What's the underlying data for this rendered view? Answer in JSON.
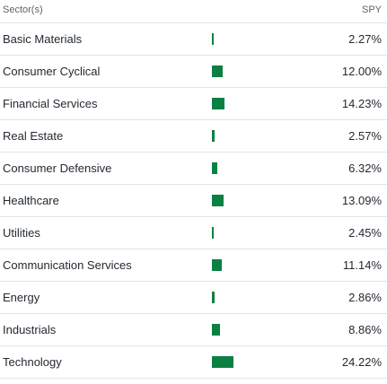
{
  "header": {
    "sector_label": "Sector(s)",
    "fund_label": "SPY"
  },
  "bar_color": "#0b8043",
  "rows": [
    {
      "name": "Basic Materials",
      "value": "2.27%",
      "pct": 2.27
    },
    {
      "name": "Consumer Cyclical",
      "value": "12.00%",
      "pct": 12.0
    },
    {
      "name": "Financial Services",
      "value": "14.23%",
      "pct": 14.23
    },
    {
      "name": "Real Estate",
      "value": "2.57%",
      "pct": 2.57
    },
    {
      "name": "Consumer Defensive",
      "value": "6.32%",
      "pct": 6.32
    },
    {
      "name": "Healthcare",
      "value": "13.09%",
      "pct": 13.09
    },
    {
      "name": "Utilities",
      "value": "2.45%",
      "pct": 2.45
    },
    {
      "name": "Communication Services",
      "value": "11.14%",
      "pct": 11.14
    },
    {
      "name": "Energy",
      "value": "2.86%",
      "pct": 2.86
    },
    {
      "name": "Industrials",
      "value": "8.86%",
      "pct": 8.86
    },
    {
      "name": "Technology",
      "value": "24.22%",
      "pct": 24.22
    }
  ]
}
